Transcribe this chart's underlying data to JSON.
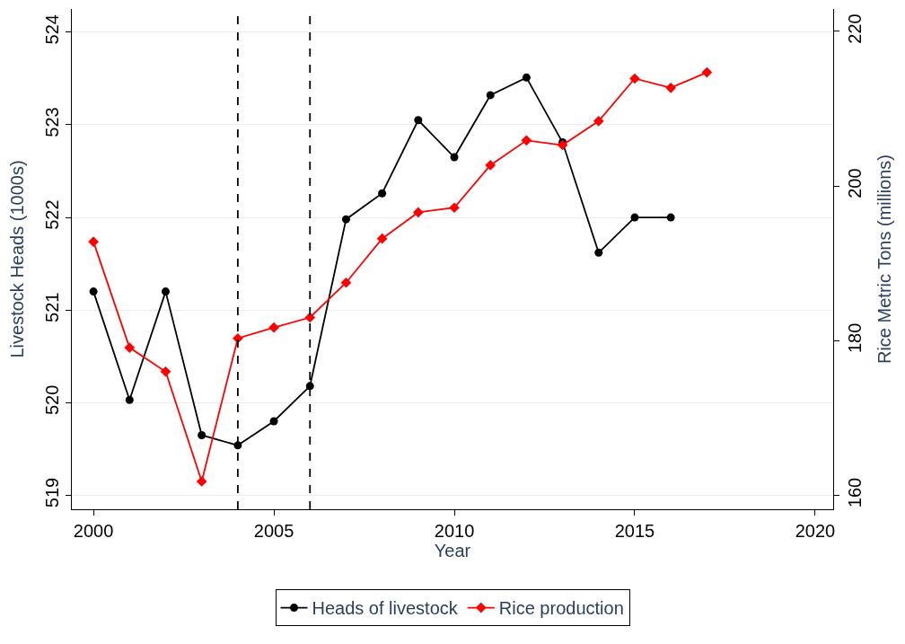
{
  "chart_data": {
    "type": "line",
    "xlabel": "Year",
    "ylabel": "Livestock Heads (1000s)",
    "y2label": "Rice Metric Tons (millions)",
    "x": [
      2000,
      2001,
      2002,
      2003,
      2004,
      2005,
      2006,
      2007,
      2008,
      2009,
      2010,
      2011,
      2012,
      2013,
      2014,
      2015,
      2016,
      2017
    ],
    "series": [
      {
        "name": "Heads of livestock",
        "color": "#000000",
        "marker": "circle",
        "values": [
          521.2,
          520.03,
          521.2,
          519.65,
          519.54,
          519.8,
          520.18,
          521.98,
          522.26,
          523.05,
          522.65,
          523.32,
          523.51,
          522.81,
          521.62,
          522.0,
          522.0,
          null
        ]
      },
      {
        "name": "Rice production",
        "color": "#ff0000",
        "marker": "diamond",
        "axis": "y2",
        "values": [
          192.8,
          179.1,
          176.0,
          161.8,
          180.3,
          181.7,
          183.0,
          187.5,
          193.2,
          196.6,
          197.2,
          202.7,
          205.9,
          205.3,
          208.4,
          213.9,
          212.7,
          214.7
        ]
      }
    ],
    "xlim": [
      1999.4,
      2020.5
    ],
    "xticks": [
      2000,
      2005,
      2010,
      2015,
      2020
    ],
    "ylim": [
      518.85,
      524.25
    ],
    "yticks": [
      519,
      520,
      521,
      522,
      523,
      524
    ],
    "y2lim": [
      158.2,
      222.9
    ],
    "y2ticks": [
      160,
      180,
      200,
      220
    ],
    "ref_lines": [
      {
        "axis": "x",
        "value": 2004,
        "color": "#000000",
        "line_style": "dashed"
      },
      {
        "axis": "x",
        "value": 2006,
        "color": "#000000",
        "line_style": "dashed"
      }
    ],
    "grid": "y",
    "legend": "bottom",
    "line_style": "solid"
  }
}
